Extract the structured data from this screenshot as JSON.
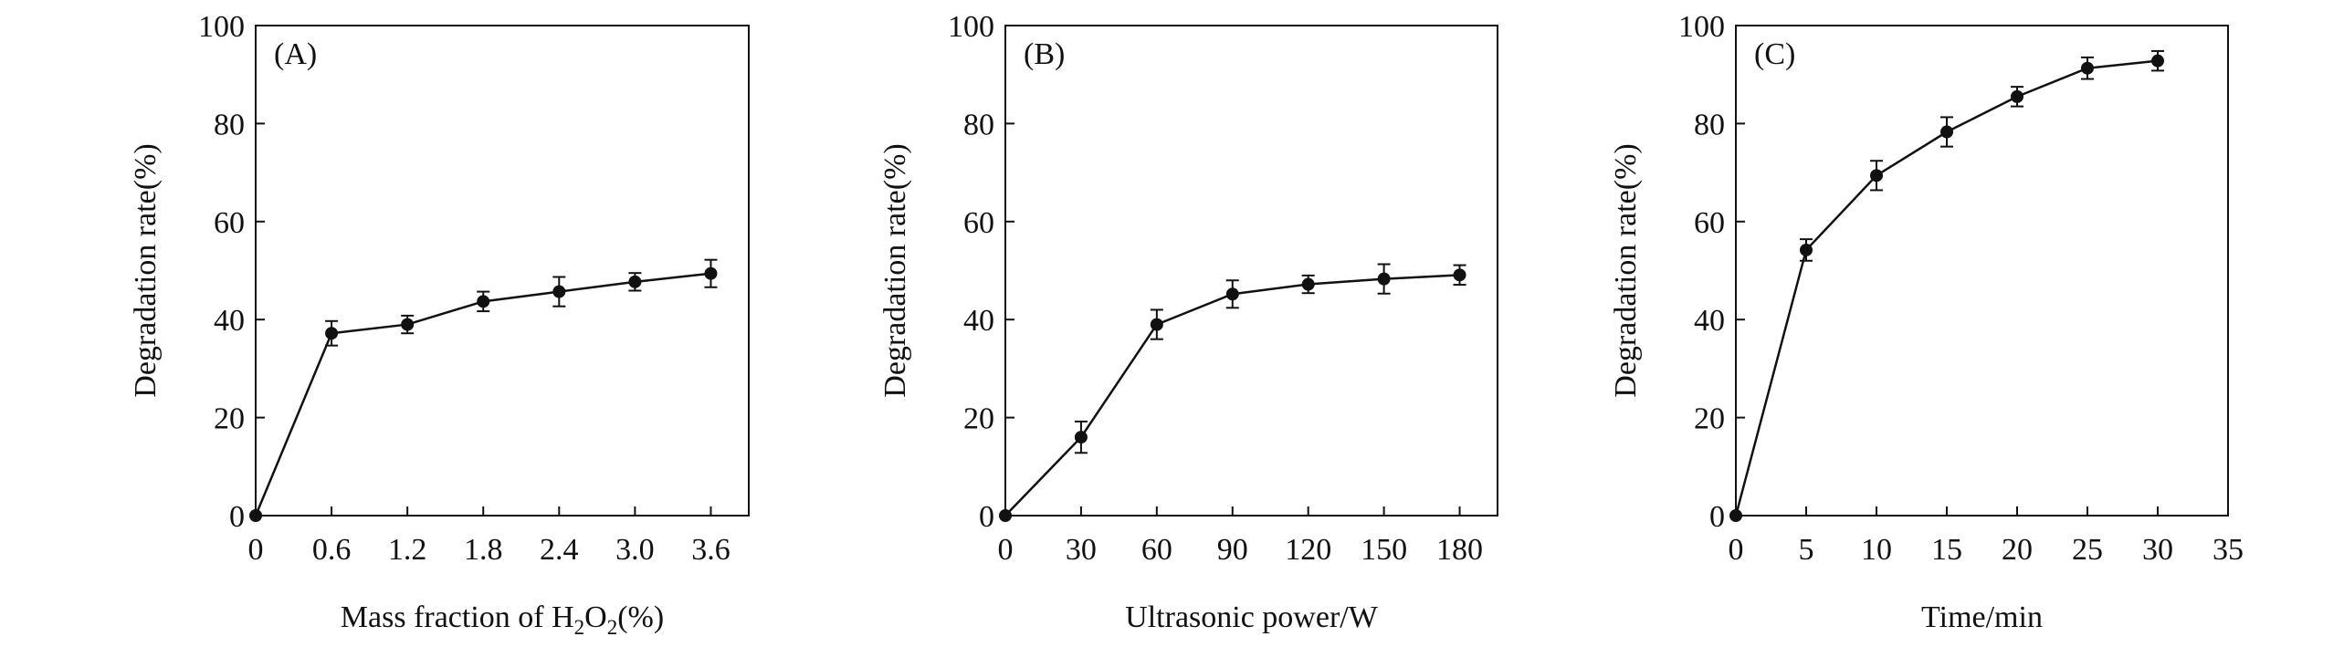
{
  "chart_data": [
    {
      "type": "line",
      "panel_label": "(A)",
      "xlabel": "Mass fraction of H₂O₂(%)",
      "xlabel_parts": [
        "Mass fraction of H",
        "2",
        "O",
        "2",
        "(%)"
      ],
      "ylabel": "Degradation rate(%)",
      "xlim": [
        0,
        3.9
      ],
      "ylim": [
        0,
        100
      ],
      "xticks": [
        0,
        0.6,
        1.2,
        1.8,
        2.4,
        3.0,
        3.6
      ],
      "xtick_labels": [
        "0",
        "0.6",
        "1.2",
        "1.8",
        "2.4",
        "3.0",
        "3.6"
      ],
      "yticks": [
        0,
        20,
        40,
        60,
        80,
        100
      ],
      "ytick_labels": [
        "0",
        "20",
        "40",
        "60",
        "80",
        "100"
      ],
      "grid": false,
      "series": [
        {
          "x": [
            0,
            0.6,
            1.2,
            1.8,
            2.4,
            3.0,
            3.6
          ],
          "y": [
            0,
            37.2,
            39.0,
            43.7,
            45.7,
            47.7,
            49.4
          ],
          "error": [
            0,
            2.5,
            1.8,
            2.0,
            3.0,
            1.8,
            2.8
          ]
        }
      ]
    },
    {
      "type": "line",
      "panel_label": "(B)",
      "xlabel": "Ultrasonic power/W",
      "xlabel_parts": [
        "Ultrasonic power/W"
      ],
      "ylabel": "Degradation rate(%)",
      "xlim": [
        0,
        195
      ],
      "ylim": [
        0,
        100
      ],
      "xticks": [
        0,
        30,
        60,
        90,
        120,
        150,
        180
      ],
      "xtick_labels": [
        "0",
        "30",
        "60",
        "90",
        "120",
        "150",
        "180"
      ],
      "yticks": [
        0,
        20,
        40,
        60,
        80,
        100
      ],
      "ytick_labels": [
        "0",
        "20",
        "40",
        "60",
        "80",
        "100"
      ],
      "grid": false,
      "series": [
        {
          "x": [
            0,
            30,
            60,
            90,
            120,
            150,
            180
          ],
          "y": [
            0,
            16.0,
            39.0,
            45.2,
            47.2,
            48.3,
            49.1
          ],
          "error": [
            0,
            3.2,
            3.0,
            2.8,
            1.8,
            3.0,
            2.0
          ]
        }
      ]
    },
    {
      "type": "line",
      "panel_label": "(C)",
      "xlabel": "Time/min",
      "xlabel_parts": [
        "Time/min"
      ],
      "ylabel": "Degradation rate(%)",
      "xlim": [
        0,
        35
      ],
      "ylim": [
        0,
        100
      ],
      "xticks": [
        0,
        5,
        10,
        15,
        20,
        25,
        30,
        35
      ],
      "xtick_labels": [
        "0",
        "5",
        "10",
        "15",
        "20",
        "25",
        "30",
        "35"
      ],
      "yticks": [
        0,
        20,
        40,
        60,
        80,
        100
      ],
      "ytick_labels": [
        "0",
        "20",
        "40",
        "60",
        "80",
        "100"
      ],
      "grid": false,
      "series": [
        {
          "x": [
            0,
            5,
            10,
            15,
            20,
            25,
            30
          ],
          "y": [
            0,
            54.2,
            69.4,
            78.3,
            85.5,
            91.3,
            92.8
          ],
          "error": [
            0,
            2.2,
            3.0,
            3.0,
            2.0,
            2.2,
            2.0
          ]
        }
      ]
    }
  ]
}
